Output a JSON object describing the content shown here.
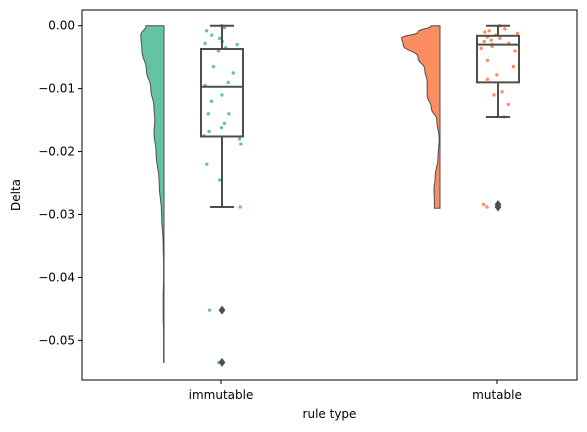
{
  "chart_data": {
    "type": "raincloud",
    "title": "",
    "xlabel": "rule type",
    "ylabel": "Delta",
    "categories": [
      "immutable",
      "mutable"
    ],
    "ylim": [
      -0.0563,
      0.0025
    ],
    "yticks": [
      0.0,
      -0.01,
      -0.02,
      -0.03,
      -0.04,
      -0.05
    ],
    "ytick_labels": [
      "0.00",
      "−0.01",
      "−0.02",
      "−0.03",
      "−0.04",
      "−0.05"
    ],
    "grid": false,
    "colors": {
      "immutable": "#66c2a5",
      "mutable": "#fc8d62",
      "box_line": "#4d4d4d"
    },
    "series": [
      {
        "category": "immutable",
        "box": {
          "q1": -0.0176,
          "median": -0.0097,
          "q3": -0.0037,
          "whisker_low": -0.0288,
          "whisker_high": 0.0
        },
        "outliers": [
          -0.0452,
          -0.0535
        ],
        "density": [
          [
            0.0,
            0.45
          ],
          [
            -0.0015,
            0.58
          ],
          [
            -0.004,
            0.55
          ],
          [
            -0.007,
            0.44
          ],
          [
            -0.01,
            0.33
          ],
          [
            -0.013,
            0.25
          ],
          [
            -0.015,
            0.23
          ],
          [
            -0.017,
            0.25
          ],
          [
            -0.02,
            0.2
          ],
          [
            -0.025,
            0.12
          ],
          [
            -0.03,
            0.06
          ],
          [
            -0.035,
            0.02
          ],
          [
            -0.038,
            0.01
          ],
          [
            -0.04,
            0.01
          ],
          [
            -0.043,
            0.02
          ],
          [
            -0.046,
            0.02
          ],
          [
            -0.049,
            0.01
          ],
          [
            -0.051,
            0.01
          ],
          [
            -0.0535,
            0.01
          ]
        ],
        "points": [
          0.0,
          -0.0003,
          -0.0008,
          -0.0015,
          -0.002,
          -0.0025,
          -0.0028,
          -0.003,
          -0.0035,
          -0.004,
          -0.0065,
          -0.0075,
          -0.009,
          -0.0095,
          -0.011,
          -0.012,
          -0.014,
          -0.014,
          -0.0155,
          -0.0162,
          -0.0168,
          -0.0175,
          -0.018,
          -0.0188,
          -0.022,
          -0.0245,
          -0.0288,
          -0.0452,
          -0.0535
        ]
      },
      {
        "category": "mutable",
        "box": {
          "q1": -0.009,
          "median": -0.003,
          "q3": -0.0016,
          "whisker_low": -0.0145,
          "whisker_high": 0.0
        },
        "outliers": [
          -0.0284,
          -0.0288
        ],
        "density": [
          [
            0.0,
            0.22
          ],
          [
            -0.001,
            0.55
          ],
          [
            -0.002,
            0.96
          ],
          [
            -0.003,
            0.92
          ],
          [
            -0.005,
            0.55
          ],
          [
            -0.007,
            0.38
          ],
          [
            -0.009,
            0.32
          ],
          [
            -0.011,
            0.32
          ],
          [
            -0.013,
            0.22
          ],
          [
            -0.015,
            0.08
          ],
          [
            -0.018,
            0.02
          ],
          [
            -0.021,
            0.05
          ],
          [
            -0.024,
            0.12
          ],
          [
            -0.026,
            0.15
          ],
          [
            -0.028,
            0.14
          ],
          [
            -0.029,
            0.14
          ]
        ],
        "points": [
          0.0,
          -0.0005,
          -0.0008,
          -0.001,
          -0.0012,
          -0.0015,
          -0.0018,
          -0.002,
          -0.0023,
          -0.0025,
          -0.0028,
          -0.003,
          -0.0033,
          -0.0036,
          -0.004,
          -0.0055,
          -0.0065,
          -0.0078,
          -0.0085,
          -0.0105,
          -0.011,
          -0.0125,
          -0.0145,
          -0.0284,
          -0.0288
        ]
      }
    ]
  }
}
